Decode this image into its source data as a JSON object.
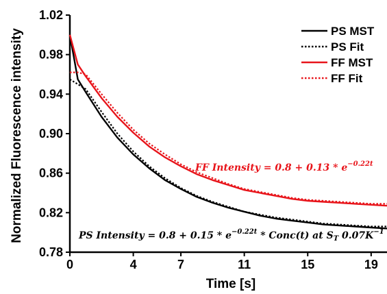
{
  "chart_data": {
    "type": "line",
    "xlabel": "Time [s]",
    "ylabel": "Normalized Fluorescence intensity",
    "xlim": [
      0,
      20
    ],
    "ylim": [
      0.78,
      1.02
    ],
    "xticks": [
      0,
      4,
      7,
      11,
      15,
      19
    ],
    "yticks": [
      "0.78",
      "0.82",
      "0.86",
      "0.90",
      "0.94",
      "0.98",
      "1.02"
    ],
    "grid": false,
    "legend_position": "top-right",
    "series": [
      {
        "name": "PS MST",
        "color": "#000000",
        "style": "solid",
        "x": [
          0,
          0.5,
          1,
          2,
          3,
          4,
          5,
          6,
          7,
          8,
          9,
          10,
          11,
          12,
          13,
          14,
          15,
          16,
          17,
          18,
          19,
          20
        ],
        "y": [
          1.0,
          0.955,
          0.942,
          0.917,
          0.896,
          0.879,
          0.865,
          0.853,
          0.844,
          0.836,
          0.83,
          0.825,
          0.821,
          0.817,
          0.814,
          0.812,
          0.81,
          0.808,
          0.807,
          0.806,
          0.805,
          0.804
        ]
      },
      {
        "name": "PS Fit",
        "color": "#000000",
        "style": "dotted",
        "x": [
          0,
          0.5,
          1,
          2,
          3,
          4,
          5,
          6,
          7,
          8,
          9,
          10,
          11,
          12,
          13,
          14,
          15,
          16,
          17,
          18,
          19,
          20
        ],
        "y": [
          0.955,
          0.95,
          0.945,
          0.922,
          0.9,
          0.882,
          0.867,
          0.855,
          0.845,
          0.837,
          0.831,
          0.826,
          0.821,
          0.818,
          0.815,
          0.813,
          0.811,
          0.809,
          0.808,
          0.807,
          0.806,
          0.806
        ]
      },
      {
        "name": "FF MST",
        "color": "#e8141a",
        "style": "solid",
        "x": [
          0,
          0.5,
          1,
          2,
          3,
          4,
          5,
          6,
          7,
          8,
          9,
          10,
          11,
          12,
          13,
          14,
          15,
          16,
          17,
          18,
          19,
          20
        ],
        "y": [
          1.0,
          0.97,
          0.958,
          0.936,
          0.917,
          0.901,
          0.887,
          0.876,
          0.867,
          0.859,
          0.853,
          0.848,
          0.843,
          0.84,
          0.837,
          0.834,
          0.832,
          0.831,
          0.83,
          0.829,
          0.828,
          0.827
        ]
      },
      {
        "name": "FF Fit",
        "color": "#e8141a",
        "style": "dotted",
        "x": [
          0,
          0.5,
          1,
          2,
          3,
          4,
          5,
          6,
          7,
          8,
          9,
          10,
          11,
          12,
          13,
          14,
          15,
          16,
          17,
          18,
          19,
          20
        ],
        "y": [
          0.962,
          0.962,
          0.96,
          0.94,
          0.921,
          0.904,
          0.89,
          0.879,
          0.869,
          0.861,
          0.855,
          0.849,
          0.844,
          0.841,
          0.838,
          0.835,
          0.833,
          0.832,
          0.831,
          0.83,
          0.829,
          0.829
        ]
      }
    ],
    "annotations": [
      {
        "id": "ff",
        "color": "#e8141a",
        "text": "FF Intensity = 0.8 + 0.13 * e",
        "superscript": "−0.22t",
        "suffix": "",
        "subscript": "",
        "tail": ""
      },
      {
        "id": "ps",
        "color": "#000000",
        "text": "PS Intensity = 0.8 + 0.15 * e",
        "superscript": "−0.22t",
        "suffix": " * Conc(t) at S",
        "subscript": "T",
        "tail": " 0.07K",
        "tail_superscript": "−1"
      }
    ]
  }
}
